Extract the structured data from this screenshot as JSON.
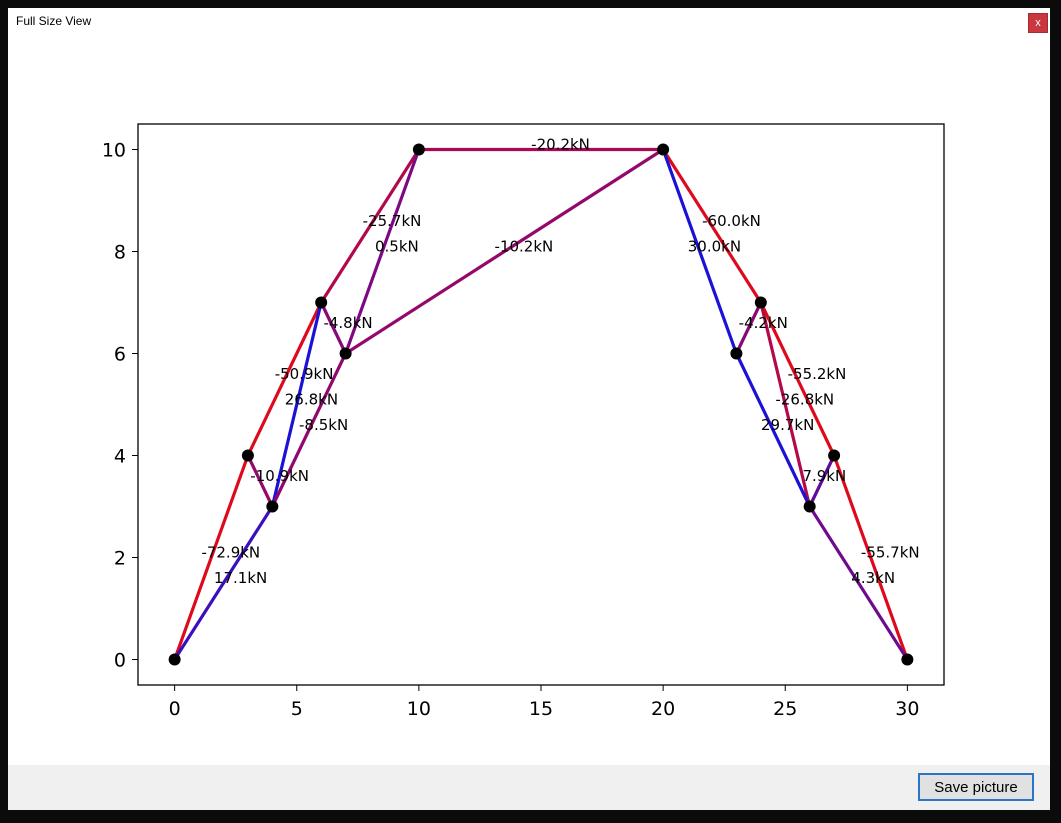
{
  "window": {
    "title": "Full Size View",
    "close_label": "x"
  },
  "footer": {
    "save_label": "Save picture"
  },
  "colors": {
    "tension": "#1c12d6",
    "compression": "#dd0a1e"
  },
  "chart_data": {
    "type": "line",
    "xlim": [
      -1.5,
      31.5
    ],
    "ylim": [
      -0.5,
      10.5
    ],
    "xticks": [
      0,
      5,
      10,
      15,
      20,
      25,
      30
    ],
    "yticks": [
      0,
      2,
      4,
      6,
      8,
      10
    ],
    "grid": false,
    "nodes": [
      {
        "x": 0,
        "y": 0
      },
      {
        "x": 3,
        "y": 4
      },
      {
        "x": 4,
        "y": 3
      },
      {
        "x": 6,
        "y": 7
      },
      {
        "x": 7,
        "y": 6
      },
      {
        "x": 10,
        "y": 10
      },
      {
        "x": 20,
        "y": 10
      },
      {
        "x": 23,
        "y": 6
      },
      {
        "x": 24,
        "y": 7
      },
      {
        "x": 26,
        "y": 3
      },
      {
        "x": 27,
        "y": 4
      },
      {
        "x": 30,
        "y": 0
      }
    ],
    "members": [
      {
        "from": [
          0,
          0
        ],
        "to": [
          3,
          4
        ],
        "force": -72.9,
        "label": "-72.9kN",
        "lx": 2.3,
        "ly": 2.1
      },
      {
        "from": [
          0,
          0
        ],
        "to": [
          4,
          3
        ],
        "force": 17.1,
        "label": "17.1kN",
        "lx": 2.7,
        "ly": 1.6
      },
      {
        "from": [
          3,
          4
        ],
        "to": [
          4,
          3
        ],
        "force": -10.9,
        "label": "-10.9kN",
        "lx": 4.3,
        "ly": 3.6
      },
      {
        "from": [
          3,
          4
        ],
        "to": [
          6,
          7
        ],
        "force": -50.9,
        "label": "-50.9kN",
        "lx": 5.3,
        "ly": 5.6
      },
      {
        "from": [
          4,
          3
        ],
        "to": [
          6,
          7
        ],
        "force": 26.8,
        "label": "26.8kN",
        "lx": 5.6,
        "ly": 5.1
      },
      {
        "from": [
          4,
          3
        ],
        "to": [
          7,
          6
        ],
        "force": -8.5,
        "label": "-8.5kN",
        "lx": 6.1,
        "ly": 4.6
      },
      {
        "from": [
          6,
          7
        ],
        "to": [
          7,
          6
        ],
        "force": -4.8,
        "label": "-4.8kN",
        "lx": 7.1,
        "ly": 6.6
      },
      {
        "from": [
          6,
          7
        ],
        "to": [
          10,
          10
        ],
        "force": -25.7,
        "label": "-25.7kN",
        "lx": 8.9,
        "ly": 8.6
      },
      {
        "from": [
          7,
          6
        ],
        "to": [
          10,
          10
        ],
        "force": 0.5,
        "label": "0.5kN",
        "lx": 9.1,
        "ly": 8.1
      },
      {
        "from": [
          7,
          6
        ],
        "to": [
          20,
          10
        ],
        "force": -10.2,
        "label": "-10.2kN",
        "lx": 14.3,
        "ly": 8.1
      },
      {
        "from": [
          10,
          10
        ],
        "to": [
          20,
          10
        ],
        "force": -20.2,
        "label": "-20.2kN",
        "lx": 15.8,
        "ly": 10.1
      },
      {
        "from": [
          20,
          10
        ],
        "to": [
          24,
          7
        ],
        "force": -60.0,
        "label": "-60.0kN",
        "lx": 22.8,
        "ly": 8.6
      },
      {
        "from": [
          20,
          10
        ],
        "to": [
          23,
          6
        ],
        "force": 30.0,
        "label": "30.0kN",
        "lx": 22.1,
        "ly": 8.1
      },
      {
        "from": [
          23,
          6
        ],
        "to": [
          24,
          7
        ],
        "force": -4.2,
        "label": "-4.2kN",
        "lx": 24.1,
        "ly": 6.6
      },
      {
        "from": [
          24,
          7
        ],
        "to": [
          27,
          4
        ],
        "force": -55.2,
        "label": "-55.2kN",
        "lx": 26.3,
        "ly": 5.6
      },
      {
        "from": [
          24,
          7
        ],
        "to": [
          26,
          3
        ],
        "force": -26.8,
        "label": "-26.8kN",
        "lx": 25.8,
        "ly": 5.1
      },
      {
        "from": [
          23,
          6
        ],
        "to": [
          26,
          3
        ],
        "force": 29.7,
        "label": "29.7kN",
        "lx": 25.1,
        "ly": 4.6
      },
      {
        "from": [
          26,
          3
        ],
        "to": [
          27,
          4
        ],
        "force": 7.9,
        "label": "7.9kN",
        "lx": 26.6,
        "ly": 3.6
      },
      {
        "from": [
          27,
          4
        ],
        "to": [
          30,
          0
        ],
        "force": -55.7,
        "label": "-55.7kN",
        "lx": 29.3,
        "ly": 2.1
      },
      {
        "from": [
          26,
          3
        ],
        "to": [
          30,
          0
        ],
        "force": 4.3,
        "label": "4.3kN",
        "lx": 28.6,
        "ly": 1.6
      }
    ]
  }
}
